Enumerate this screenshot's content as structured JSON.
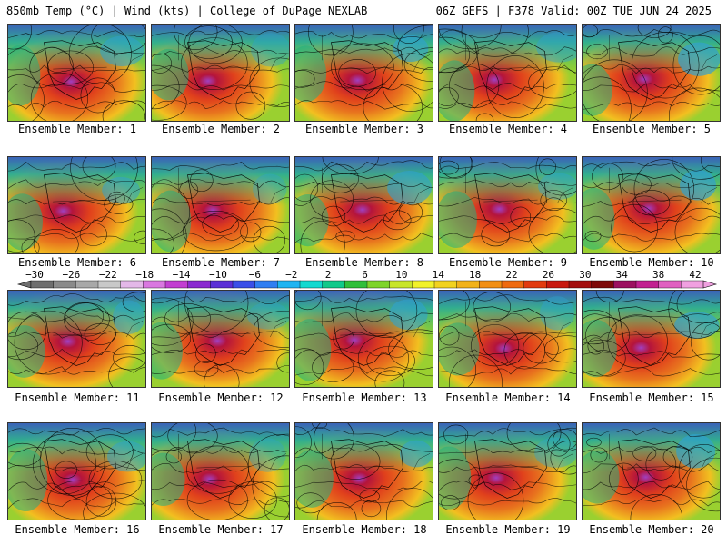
{
  "header": {
    "left": "850mb Temp (°C) | Wind (kts) | College of DuPage NEXLAB",
    "right": "06Z GEFS | F378 Valid: 00Z TUE JUN 24 2025"
  },
  "caption_prefix": "Ensemble Member: ",
  "members": [
    "1",
    "2",
    "3",
    "4",
    "5",
    "6",
    "7",
    "8",
    "9",
    "10",
    "11",
    "12",
    "13",
    "14",
    "15",
    "16",
    "17",
    "18",
    "19",
    "20"
  ],
  "colorbar": {
    "labels": [
      "−30",
      "−26",
      "−22",
      "−18",
      "−14",
      "−10",
      "−6",
      "−2",
      "2",
      "6",
      "10",
      "14",
      "18",
      "22",
      "26",
      "30",
      "34",
      "38",
      "42"
    ],
    "colors": [
      "#6e6e6e",
      "#8a8a8a",
      "#a8a8a8",
      "#c8c8c8",
      "#e3b8e8",
      "#d977e0",
      "#c23fd1",
      "#8a2ad0",
      "#5a2fd6",
      "#3a4fe8",
      "#2f7ef2",
      "#1fb4f2",
      "#13d9d0",
      "#10c98a",
      "#2fbf3a",
      "#7ed42a",
      "#c8e52a",
      "#f2f22a",
      "#f2d21f",
      "#f2b21a",
      "#f28f14",
      "#ef6a10",
      "#e23a0f",
      "#c8180f",
      "#a30e0e",
      "#7e0a0a",
      "#9c1060",
      "#c22090",
      "#e060c0",
      "#f0a0e0"
    ]
  },
  "colors": {
    "land_warm": "#e8731e",
    "heat_core": "#b4143c",
    "heat_peak": "#a040c0",
    "cold_ocean": "#1fa8a0",
    "arctic": "#2a50d0"
  }
}
